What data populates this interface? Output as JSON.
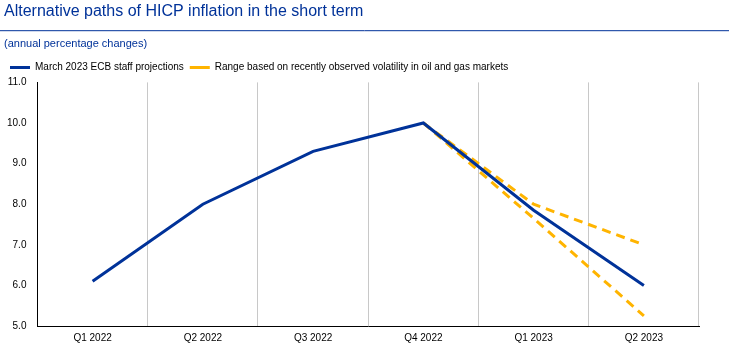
{
  "chart_data": {
    "type": "line",
    "title": "Alternative paths of HICP inflation in the short term",
    "subtitle": "(annual percentage changes)",
    "categories": [
      "Q1 2022",
      "Q2 2022",
      "Q3 2022",
      "Q4 2022",
      "Q1 2023",
      "Q2 2023"
    ],
    "series": [
      {
        "name": "March 2023 ECB staff projections",
        "color": "#003299",
        "line_style": "solid",
        "values": [
          6.1,
          8.0,
          9.3,
          10.0,
          7.85,
          6.0
        ]
      },
      {
        "name": "Range based on recently observed volatility in oil and gas markets",
        "color": "#ffb400",
        "line_style": "dashed",
        "lower": [
          null,
          null,
          null,
          10.0,
          7.65,
          5.25
        ],
        "upper": [
          null,
          null,
          null,
          10.0,
          8.0,
          7.0
        ]
      }
    ],
    "ylim": [
      5,
      11
    ],
    "yticks": [
      {
        "value": 5,
        "label": "5.0"
      },
      {
        "value": 6,
        "label": "6.0"
      },
      {
        "value": 7,
        "label": "7.0"
      },
      {
        "value": 8,
        "label": "8.0"
      },
      {
        "value": 9,
        "label": "9.0"
      },
      {
        "value": 10,
        "label": "10.0"
      },
      {
        "value": 11,
        "label": "11.0"
      }
    ],
    "grid": true,
    "legend": "top left"
  }
}
